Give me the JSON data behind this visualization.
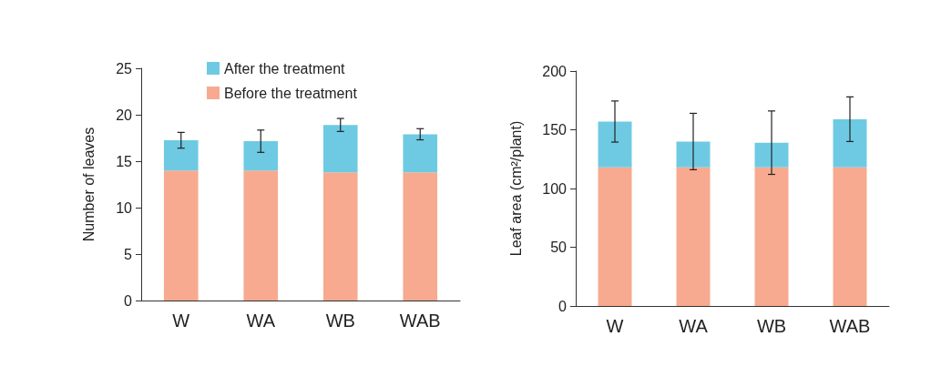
{
  "chart_data": [
    {
      "type": "bar",
      "stacked": true,
      "ylabel": "Number of leaves",
      "categories": [
        "W",
        "WA",
        "WB",
        "WAB"
      ],
      "series": [
        {
          "name": "Before the treatment",
          "color": "#f7aa8f",
          "values": [
            14.0,
            14.0,
            13.8,
            13.8
          ]
        },
        {
          "name": "After the treatment",
          "color": "#6ecae3",
          "values": [
            3.25,
            3.15,
            5.1,
            4.1
          ],
          "errors": [
            0.85,
            1.2,
            0.7,
            0.6
          ]
        }
      ],
      "ylim": [
        0,
        25
      ],
      "yticks": [
        0,
        5,
        10,
        15,
        20,
        25
      ],
      "grid": false,
      "legend": "top"
    },
    {
      "type": "bar",
      "stacked": true,
      "ylabel": "Leaf area (cm²/plant)",
      "categories": [
        "W",
        "WA",
        "WB",
        "WAB"
      ],
      "series": [
        {
          "color": "#f7aa8f",
          "values": [
            118,
            118,
            118,
            118
          ]
        },
        {
          "color": "#6ecae3",
          "values": [
            39,
            22,
            21,
            41
          ],
          "errors": [
            17.5,
            24,
            27,
            19
          ]
        }
      ],
      "ylim": [
        0,
        200
      ],
      "yticks": [
        0,
        50,
        100,
        150,
        200
      ],
      "grid": false,
      "legend": false
    }
  ]
}
